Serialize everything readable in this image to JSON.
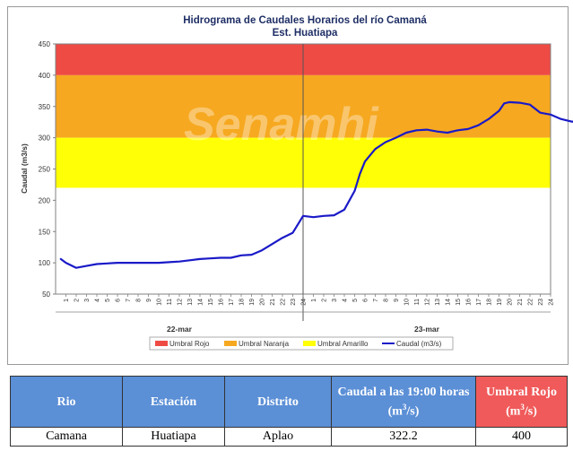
{
  "chart_data": {
    "type": "line",
    "title": "Hidrograma de Caudales Horarios del río Camaná",
    "subtitle": "Est. Huatiapa",
    "ylabel": "Caudal  (m3/s)",
    "ylim": [
      50,
      450
    ],
    "yticks": [
      50,
      100,
      150,
      200,
      250,
      300,
      350,
      400,
      450
    ],
    "xticks_day1": [
      "1",
      "2",
      "3",
      "4",
      "5",
      "6",
      "7",
      "8",
      "9",
      "10",
      "11",
      "12",
      "13",
      "14",
      "15",
      "16",
      "17",
      "18",
      "19",
      "20",
      "21",
      "22",
      "23",
      "24"
    ],
    "xticks_day2": [
      "1",
      "2",
      "3",
      "4",
      "5",
      "6",
      "7",
      "8",
      "9",
      "10",
      "11",
      "12",
      "13",
      "14",
      "15",
      "16",
      "17",
      "18",
      "19",
      "20",
      "21",
      "22",
      "23",
      "24"
    ],
    "day_labels": [
      "22-mar",
      "23-mar"
    ],
    "threshold_bands": [
      {
        "name": "Umbral Rojo",
        "from": 400,
        "to": 450,
        "color": "#ef4b45"
      },
      {
        "name": "Umbral Naranja",
        "from": 300,
        "to": 400,
        "color": "#f6a820"
      },
      {
        "name": "Umbral Amarillo",
        "from": 220,
        "to": 300,
        "color": "#ffff05"
      }
    ],
    "series": [
      {
        "name": "Caudal (m3/s)",
        "color": "#1a1ac8",
        "points": [
          [
            0.5,
            106
          ],
          [
            1,
            100
          ],
          [
            2,
            92
          ],
          [
            3,
            95
          ],
          [
            4,
            98
          ],
          [
            5,
            99
          ],
          [
            6,
            100
          ],
          [
            7,
            100
          ],
          [
            8,
            100
          ],
          [
            9,
            100
          ],
          [
            10,
            100
          ],
          [
            11,
            101
          ],
          [
            12,
            102
          ],
          [
            13,
            104
          ],
          [
            14,
            106
          ],
          [
            15,
            107
          ],
          [
            16,
            108
          ],
          [
            17,
            108
          ],
          [
            18,
            112
          ],
          [
            19,
            113
          ],
          [
            20,
            120
          ],
          [
            21,
            130
          ],
          [
            22,
            140
          ],
          [
            23,
            148
          ],
          [
            24,
            175
          ],
          [
            25,
            173
          ],
          [
            26,
            175
          ],
          [
            27,
            176
          ],
          [
            28,
            185
          ],
          [
            29,
            215
          ],
          [
            29.5,
            242
          ],
          [
            30,
            262
          ],
          [
            31,
            282
          ],
          [
            32,
            293
          ],
          [
            33,
            300
          ],
          [
            34,
            308
          ],
          [
            35,
            312
          ],
          [
            36,
            313
          ],
          [
            37,
            310
          ],
          [
            38,
            308
          ],
          [
            39,
            312
          ],
          [
            40,
            314
          ],
          [
            41,
            320
          ],
          [
            42,
            330
          ],
          [
            43,
            343
          ],
          [
            43.5,
            355
          ],
          [
            44,
            357
          ],
          [
            45,
            356
          ],
          [
            46,
            353
          ],
          [
            47,
            340
          ],
          [
            48,
            337
          ],
          [
            49,
            330
          ],
          [
            50,
            326
          ],
          [
            51,
            324
          ],
          [
            52,
            322
          ]
        ]
      }
    ],
    "legend": [
      "Umbral Rojo",
      "Umbral Naranja",
      "Umbral Amarillo",
      "Caudal (m3/s)"
    ],
    "legend_position": "bottom",
    "grid": false
  },
  "watermark": "Senamhi",
  "table": {
    "headers": {
      "rio": "Rio",
      "estacion": "Estación",
      "distrito": "Distrito",
      "caudal_pre": "Caudal a las 19:00 horas (m",
      "caudal_sup": "3",
      "caudal_post": "/s)",
      "umbral_pre": "Umbral Rojo (m",
      "umbral_sup": "3",
      "umbral_post": "/s)"
    },
    "row": {
      "rio": "Camana",
      "estacion": "Huatiapa",
      "distrito": "Aplao",
      "caudal": "322.2",
      "umbral": "400"
    }
  }
}
